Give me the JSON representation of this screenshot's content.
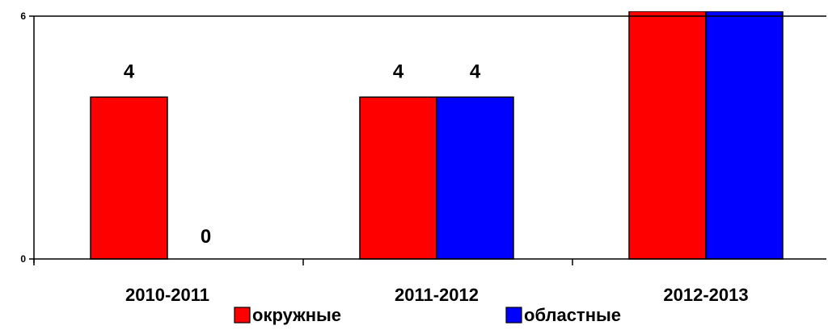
{
  "chart_data": {
    "type": "bar",
    "title": "",
    "xlabel": "",
    "ylabel": "",
    "categories": [
      "2010-2011",
      "2011-2012",
      "2012-2013"
    ],
    "series": [
      {
        "name": "окружные",
        "color": "#ff0000",
        "values": [
          4,
          4,
          6
        ],
        "data_labels": [
          "4",
          "4",
          null
        ]
      },
      {
        "name": "областные",
        "color": "#0000ff",
        "values": [
          0,
          4,
          6
        ],
        "data_labels": [
          "0",
          "4",
          null
        ]
      }
    ],
    "y_ticks": [
      "0",
      "6"
    ],
    "ylim": [
      0,
      6
    ],
    "grid": false,
    "legend_position": "bottom"
  }
}
